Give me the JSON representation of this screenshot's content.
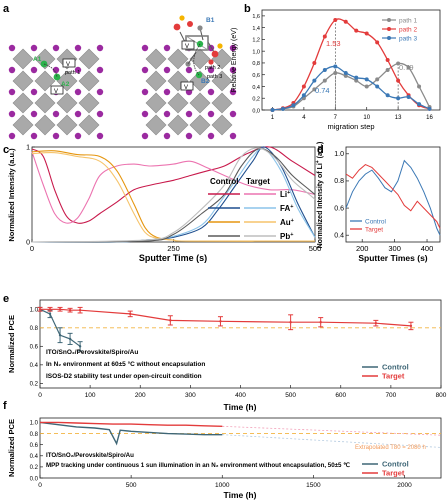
{
  "panel_labels": {
    "a": "a",
    "b": "b",
    "c": "c",
    "d": "d",
    "e": "e",
    "f": "f"
  },
  "colors": {
    "red": "#e33b3b",
    "gray": "#8a8a8a",
    "blue": "#3b78b5",
    "darkteal": "#3e6676",
    "orange": "#f1a21c",
    "pink": "#ec74b0",
    "crimson": "#c8194b",
    "lightblue": "#8cc4ea",
    "purple": "#9b2aa0",
    "grayAtom": "#a9a9a9",
    "green": "#2bb24b",
    "dashedOrange": "#f2b441"
  },
  "panel_a": {
    "labels": {
      "A1": "A1",
      "A2": "A2",
      "B1": "B1",
      "B2": "B2",
      "path1": "path 1",
      "path2": "path 2",
      "path3": "path 3",
      "v1": "V",
      "v2": "V",
      "v3": "V",
      "v4": "V"
    }
  },
  "chart_data": [
    {
      "id": "b",
      "type": "line",
      "xlabel": "migration step",
      "ylabel": "Relative Energy (eV)",
      "xticks": [
        1,
        4,
        7,
        10,
        13,
        16
      ],
      "yticks": [
        "0,0",
        "0,2",
        "0,4",
        "0,6",
        "0,8",
        "1,0",
        "1,2",
        "1,4",
        "1,6"
      ],
      "xlim": [
        0,
        17
      ],
      "ylim": [
        0,
        1.7
      ],
      "legend": "top-right",
      "annotations": [
        "1.53",
        "0.79",
        "0.74"
      ],
      "series": [
        {
          "name": "path 1",
          "color": "#8a8a8a",
          "x": [
            1,
            2,
            3,
            4,
            5,
            6,
            7,
            8,
            9,
            10,
            11,
            12,
            13,
            14,
            15,
            16
          ],
          "y": [
            0,
            0.02,
            0.06,
            0.2,
            0.35,
            0.5,
            0.63,
            0.58,
            0.5,
            0.4,
            0.52,
            0.68,
            0.79,
            0.72,
            0.4,
            0.05
          ]
        },
        {
          "name": "path 2",
          "color": "#e33b3b",
          "x": [
            1,
            2,
            3,
            4,
            5,
            6,
            7,
            8,
            9,
            10,
            11,
            12,
            13,
            14,
            15,
            16
          ],
          "y": [
            0,
            0.03,
            0.12,
            0.4,
            0.8,
            1.25,
            1.53,
            1.5,
            1.35,
            1.3,
            1.15,
            0.85,
            0.5,
            0.25,
            0.08,
            0.02
          ]
        },
        {
          "name": "path 3",
          "color": "#3b78b5",
          "x": [
            1,
            2,
            3,
            4,
            5,
            6,
            7,
            8,
            9,
            10,
            11,
            12,
            13,
            14,
            15,
            16
          ],
          "y": [
            0,
            0.02,
            0.08,
            0.25,
            0.5,
            0.68,
            0.74,
            0.63,
            0.55,
            0.52,
            0.4,
            0.25,
            0.2,
            0.22,
            0.1,
            0.02
          ]
        }
      ]
    },
    {
      "id": "c",
      "type": "line",
      "xlabel": "Sputter Time (s)",
      "ylabel": "Normalized Intensity (a.u.)",
      "xticks": [
        0,
        250,
        500
      ],
      "yticks": [
        "0",
        "1"
      ],
      "xlim": [
        0,
        500
      ],
      "ylim": [
        0,
        1
      ],
      "legend": "right",
      "legend_headers": {
        "control": "Control",
        "target": "Target"
      },
      "ions": [
        "Li",
        "FA",
        "Au",
        "Pb"
      ],
      "ion_sup": "+",
      "series": [
        {
          "name": "Li control",
          "color": "#c8194b",
          "x": [
            0,
            20,
            40,
            60,
            80,
            100,
            120,
            150,
            180,
            210,
            250,
            280,
            310,
            340,
            380,
            420,
            460,
            500
          ],
          "y": [
            0.98,
            0.9,
            0.55,
            0.28,
            0.2,
            0.22,
            0.3,
            0.42,
            0.55,
            0.6,
            0.65,
            0.7,
            0.75,
            0.8,
            0.93,
            1.0,
            0.85,
            0.7
          ]
        },
        {
          "name": "Li target",
          "color": "#ec74b0",
          "x": [
            0,
            20,
            40,
            60,
            80,
            100,
            120,
            150,
            180,
            210,
            250,
            280,
            310,
            340,
            380,
            420,
            460,
            500
          ],
          "y": [
            0.95,
            0.6,
            0.3,
            0.2,
            0.25,
            0.45,
            0.7,
            0.8,
            0.82,
            0.8,
            0.82,
            0.85,
            0.78,
            0.7,
            0.6,
            0.55,
            0.55,
            0.5
          ]
        },
        {
          "name": "FA control",
          "color": "#1f4f8f",
          "x": [
            0,
            150,
            200,
            250,
            300,
            330,
            360,
            390,
            410,
            440,
            470,
            500
          ],
          "y": [
            0,
            0,
            0.02,
            0.05,
            0.15,
            0.35,
            0.6,
            0.85,
            1.0,
            0.8,
            0.4,
            0.05
          ]
        },
        {
          "name": "FA target",
          "color": "#8cc4ea",
          "x": [
            0,
            150,
            200,
            250,
            300,
            330,
            360,
            390,
            410,
            440,
            470,
            500
          ],
          "y": [
            0,
            0,
            0.02,
            0.06,
            0.18,
            0.4,
            0.65,
            0.9,
            0.98,
            0.75,
            0.35,
            0.05
          ]
        },
        {
          "name": "Au control",
          "color": "#e59610",
          "x": [
            0,
            40,
            80,
            120,
            150,
            180,
            200,
            220,
            250,
            280,
            500
          ],
          "y": [
            0.95,
            0.96,
            0.92,
            0.9,
            0.75,
            0.4,
            0.15,
            0.05,
            0.02,
            0.01,
            0.01
          ]
        },
        {
          "name": "Au target",
          "color": "#f6c46c",
          "x": [
            0,
            40,
            80,
            120,
            150,
            180,
            200,
            220,
            250,
            280,
            500
          ],
          "y": [
            0.93,
            0.94,
            0.9,
            0.85,
            0.65,
            0.3,
            0.1,
            0.04,
            0.02,
            0.01,
            0.01
          ]
        },
        {
          "name": "Pb control",
          "color": "#5a5a5a",
          "x": [
            0,
            200,
            250,
            300,
            340,
            370,
            400,
            430,
            460,
            490,
            500
          ],
          "y": [
            0,
            0.01,
            0.08,
            0.3,
            0.5,
            0.8,
            0.98,
            0.9,
            0.7,
            0.55,
            0.5
          ]
        },
        {
          "name": "Pb target",
          "color": "#bdbdbd",
          "x": [
            0,
            200,
            250,
            300,
            340,
            370,
            400,
            430,
            460,
            490,
            500
          ],
          "y": [
            0,
            0.02,
            0.1,
            0.35,
            0.6,
            0.9,
            0.99,
            0.88,
            0.65,
            0.5,
            0.45
          ]
        }
      ]
    },
    {
      "id": "d",
      "type": "line",
      "xlabel": "Sputter Times (s)",
      "ylabel": "Normalized Intensity of Li",
      "ylabel_sup": "+",
      "ylabel_suffix": " (a.u.)",
      "xticks": [
        200,
        300,
        400
      ],
      "yticks": [
        "0.4",
        "0.6",
        "0.8",
        "1.0"
      ],
      "xlim": [
        150,
        440
      ],
      "ylim": [
        0.35,
        1.05
      ],
      "legend": "bottom-left",
      "series": [
        {
          "name": "Control",
          "color": "#3b78b5",
          "x": [
            150,
            170,
            190,
            210,
            230,
            250,
            270,
            290,
            310,
            330,
            350,
            370,
            390,
            410,
            430,
            440
          ],
          "y": [
            0.6,
            0.72,
            0.8,
            0.85,
            0.88,
            0.82,
            0.75,
            0.72,
            0.8,
            0.95,
            0.9,
            0.82,
            0.72,
            0.6,
            0.45,
            0.4
          ]
        },
        {
          "name": "Target",
          "color": "#e33b3b",
          "x": [
            150,
            170,
            190,
            210,
            230,
            250,
            270,
            290,
            310,
            330,
            350,
            370,
            390,
            410,
            430,
            440
          ],
          "y": [
            0.85,
            0.82,
            0.88,
            0.92,
            0.9,
            0.85,
            0.8,
            0.75,
            0.7,
            0.62,
            0.58,
            0.65,
            0.6,
            0.55,
            0.5,
            0.45
          ]
        }
      ]
    },
    {
      "id": "e",
      "type": "line",
      "xlabel": "Time (h)",
      "ylabel": "Normalized PCE",
      "xticks": [
        0,
        100,
        200,
        300,
        400,
        500,
        600,
        700,
        800
      ],
      "yticks": [
        "0.2",
        "0.4",
        "0.6",
        "0.8",
        "1.0"
      ],
      "xlim": [
        0,
        800
      ],
      "ylim": [
        0.15,
        1.1
      ],
      "legend": "bottom-right",
      "annotations": [
        "ITO/SnO₂/Perovskite/Spiro/Au",
        "In N₂ environment at 60±5 °C without encapsulation",
        "ISOS-D2 stability test under open-circuit condition"
      ],
      "reference_line": 0.8,
      "series": [
        {
          "name": "Control",
          "color": "#3e6676",
          "x": [
            0,
            20,
            40,
            60,
            80
          ],
          "y": [
            1.0,
            0.95,
            0.72,
            0.68,
            0.6
          ],
          "err": [
            0.02,
            0.04,
            0.08,
            0.06,
            0.05
          ]
        },
        {
          "name": "Target",
          "color": "#e33b3b",
          "x": [
            0,
            20,
            40,
            60,
            80,
            180,
            260,
            360,
            500,
            560,
            670,
            740
          ],
          "y": [
            1.0,
            1.0,
            1.0,
            0.99,
            0.99,
            0.95,
            0.88,
            0.87,
            0.86,
            0.86,
            0.85,
            0.82
          ],
          "err": [
            0.02,
            0.02,
            0.02,
            0.02,
            0.03,
            0.03,
            0.05,
            0.05,
            0.08,
            0.05,
            0.03,
            0.04
          ]
        }
      ]
    },
    {
      "id": "f",
      "type": "line",
      "xlabel": "Time (h)",
      "ylabel": "Normalized PCE",
      "xticks": [
        0,
        500,
        1000,
        1500,
        2000
      ],
      "yticks": [
        "0.0",
        "0.2",
        "0.4",
        "0.6",
        "0.8",
        "1.0"
      ],
      "xlim": [
        0,
        2200
      ],
      "ylim": [
        0,
        1.08
      ],
      "legend": "bottom-right",
      "annotations": [
        "ITO/SnO₂/Perovskite/Spiro/Au",
        "MPP tracking under continuous 1 sun illumination in an N₂ environment without encapsulation, 50±5 ℃",
        "Extrapolated T80 = 2080 h"
      ],
      "reference_line": 0.8,
      "series": [
        {
          "name": "Control",
          "color": "#3e6676",
          "x": [
            0,
            100,
            200,
            300,
            380,
            420,
            440,
            500,
            600,
            700,
            800,
            900,
            1000
          ],
          "y": [
            1.0,
            0.96,
            0.92,
            0.9,
            0.87,
            0.62,
            0.86,
            0.84,
            0.82,
            0.8,
            0.79,
            0.78,
            0.78
          ]
        },
        {
          "name": "Target",
          "color": "#e33b3b",
          "x": [
            0,
            100,
            200,
            300,
            400,
            500,
            600,
            700,
            800,
            900,
            1000
          ],
          "y": [
            1.0,
            1.0,
            0.99,
            0.98,
            0.97,
            0.97,
            0.96,
            0.95,
            0.95,
            0.94,
            0.93
          ]
        }
      ]
    }
  ]
}
